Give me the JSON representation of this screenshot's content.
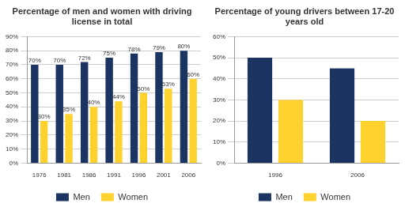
{
  "chart_data": [
    {
      "type": "bar",
      "title": "Percentage of men and women with driving license in total",
      "categories": [
        "1976",
        "1981",
        "1986",
        "1991",
        "1996",
        "2001",
        "2006"
      ],
      "series": [
        {
          "name": "Men",
          "color": "#1c3461",
          "values": [
            70,
            70,
            72,
            75,
            78,
            79,
            80
          ],
          "value_labels": [
            "70%",
            "70%",
            "72%",
            "75%",
            "78%",
            "79%",
            "80%"
          ]
        },
        {
          "name": "Women",
          "color": "#fdd12e",
          "values": [
            30,
            35,
            40,
            44,
            50,
            53,
            60
          ],
          "value_labels": [
            "30%",
            "35%",
            "40%",
            "44%",
            "50%",
            "53%",
            "60%"
          ]
        }
      ],
      "ylim": [
        0,
        90
      ],
      "yticks": [
        {
          "value": 0,
          "label": "0%"
        },
        {
          "value": 10,
          "label": "10%"
        },
        {
          "value": 20,
          "label": "20%"
        },
        {
          "value": 30,
          "label": "30%"
        },
        {
          "value": 40,
          "label": "40%"
        },
        {
          "value": 50,
          "label": "50%"
        },
        {
          "value": 60,
          "label": "60%"
        },
        {
          "value": 70,
          "label": "70%"
        },
        {
          "value": 80,
          "label": "80%"
        },
        {
          "value": 90,
          "label": "90%"
        }
      ],
      "grid": true,
      "legend": "bottom",
      "data_labels": true
    },
    {
      "type": "bar",
      "title": "Percentage of young drivers between 17-20 years old",
      "categories": [
        "1996",
        "2006"
      ],
      "series": [
        {
          "name": "Men",
          "color": "#1c3461",
          "values": [
            50,
            45
          ]
        },
        {
          "name": "Women",
          "color": "#fdd12e",
          "values": [
            30,
            20
          ]
        }
      ],
      "ylim": [
        0,
        60
      ],
      "yticks": [
        {
          "value": 0,
          "label": "0%"
        },
        {
          "value": 10,
          "label": "10%"
        },
        {
          "value": 20,
          "label": "20%"
        },
        {
          "value": 30,
          "label": "30%"
        },
        {
          "value": 40,
          "label": "40%"
        },
        {
          "value": 50,
          "label": "50%"
        },
        {
          "value": 60,
          "label": "60%"
        }
      ],
      "grid": true,
      "legend": "bottom"
    }
  ]
}
